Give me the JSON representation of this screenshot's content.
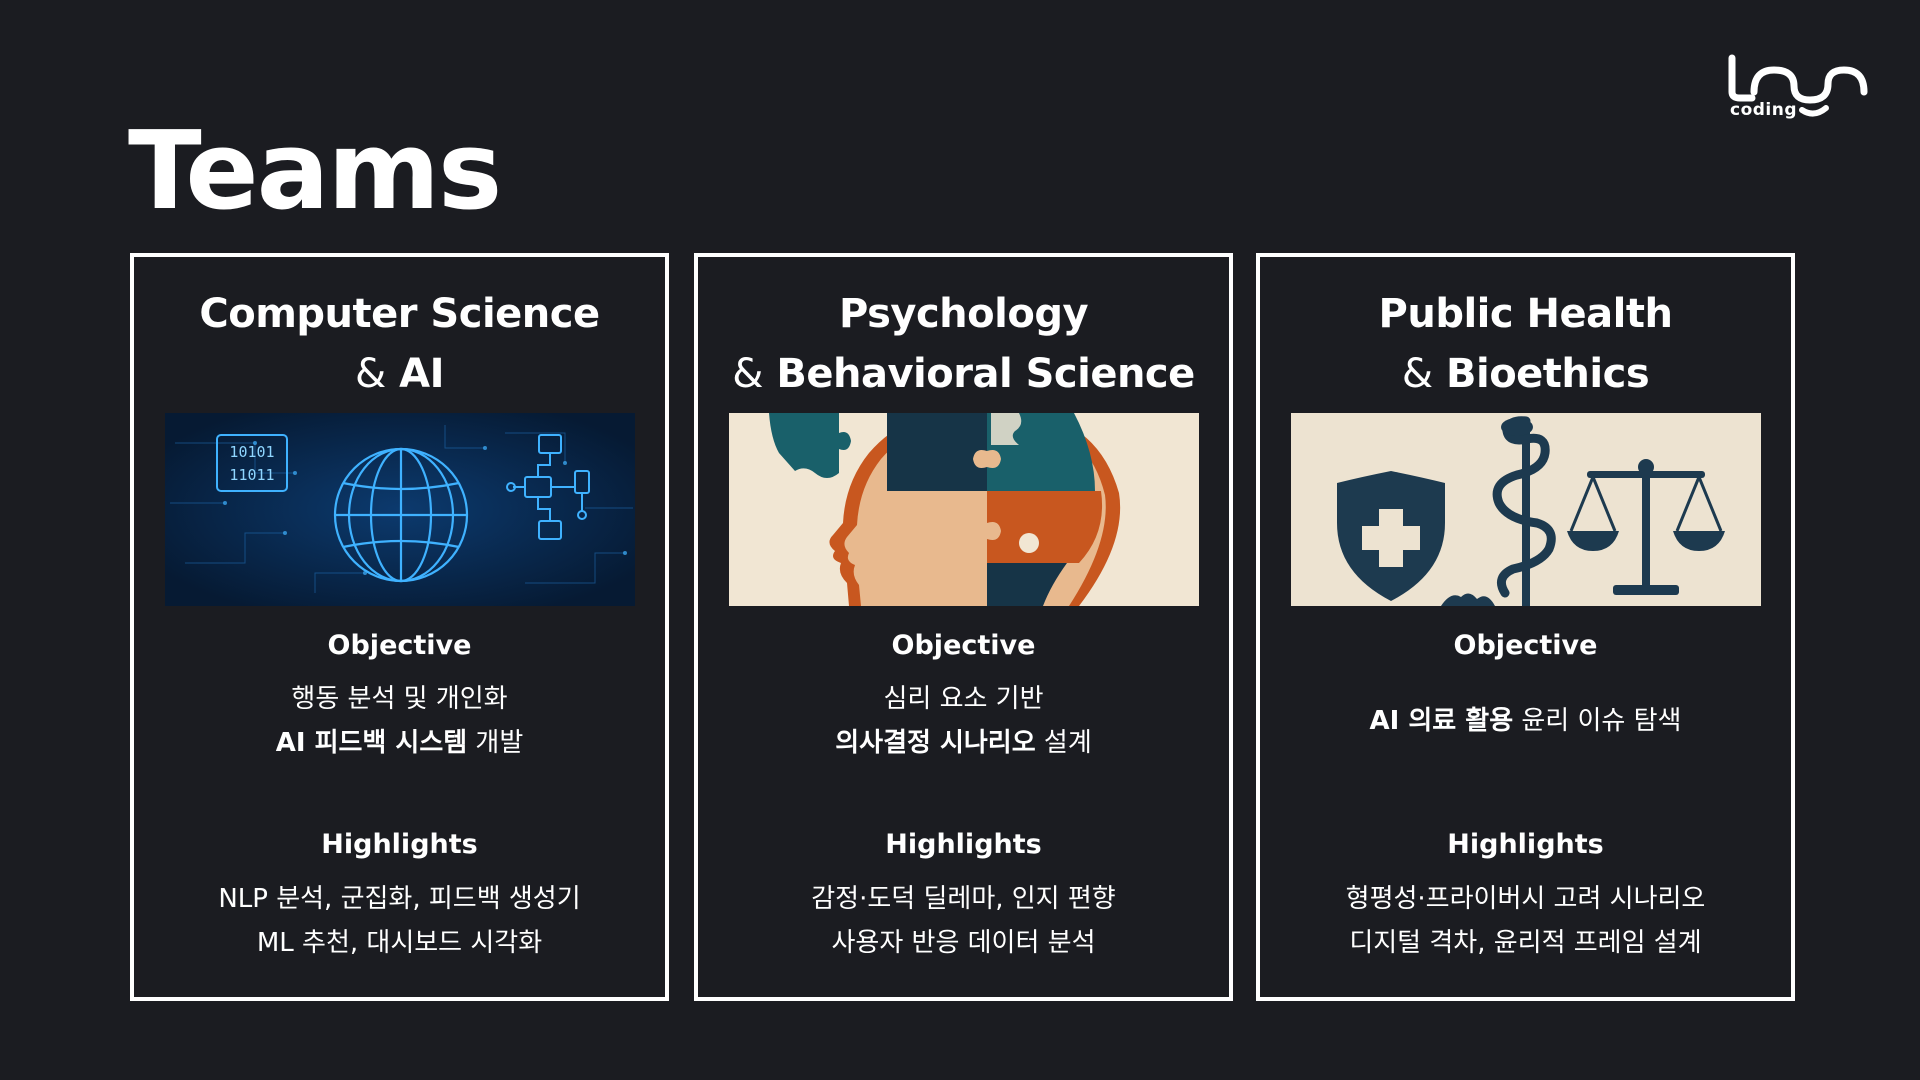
{
  "page": {
    "title": "Teams",
    "logo": {
      "text": "coding",
      "icon": "loop-wave-logo"
    }
  },
  "cards": [
    {
      "title_line1": "Computer Science",
      "title_amp": "&",
      "title_line2": "AI",
      "image": "digital-globe-binary-flowchart",
      "image_text": {
        "binary_1": "10101",
        "binary_2": "11011"
      },
      "objective_heading": "Objective",
      "objective_line1": "행동 분석 및 개인화",
      "objective_line2_bold": "AI 피드백 시스템",
      "objective_line2_rest": " 개발",
      "highlights_heading": "Highlights",
      "highlights_line1": "NLP 분석, 군집화, 피드백 생성기",
      "highlights_line2": "ML 추천, 대시보드 시각화"
    },
    {
      "title_line1": "Psychology",
      "title_amp": "&",
      "title_line2": "Behavioral Science",
      "image": "puzzle-head-profile",
      "objective_heading": "Objective",
      "objective_line1": "심리 요소 기반",
      "objective_line2_bold": "의사결정 시나리오",
      "objective_line2_rest": " 설계",
      "highlights_heading": "Highlights",
      "highlights_line1": "감정·도덕 딜레마, 인지 편향",
      "highlights_line2": "사용자 반응 데이터 분석"
    },
    {
      "title_line1": "Public Health",
      "title_amp": "&",
      "title_line2": "Bioethics",
      "image": "medical-shield-caduceus-scales",
      "objective_heading": "Objective",
      "objective_line1_bold": "AI 의료 활용",
      "objective_line1_rest": " 윤리 이슈 탐색",
      "highlights_heading": "Highlights",
      "highlights_line1": "형평성·프라이버시 고려 시나리오",
      "highlights_line2": "디지털 격차, 윤리적 프레임 설계"
    }
  ],
  "colors": {
    "background": "#1b1c21",
    "card_border": "#ffffff",
    "text": "#ffffff",
    "cs_image_bg": "#07203f",
    "cs_accent": "#2aa6ff",
    "psych_bg": "#f1e6d3",
    "psych_orange": "#c8571f",
    "psych_teal": "#19606a",
    "psych_navy": "#163447",
    "health_bg": "#ede3d1",
    "health_navy": "#1d3a4f"
  }
}
